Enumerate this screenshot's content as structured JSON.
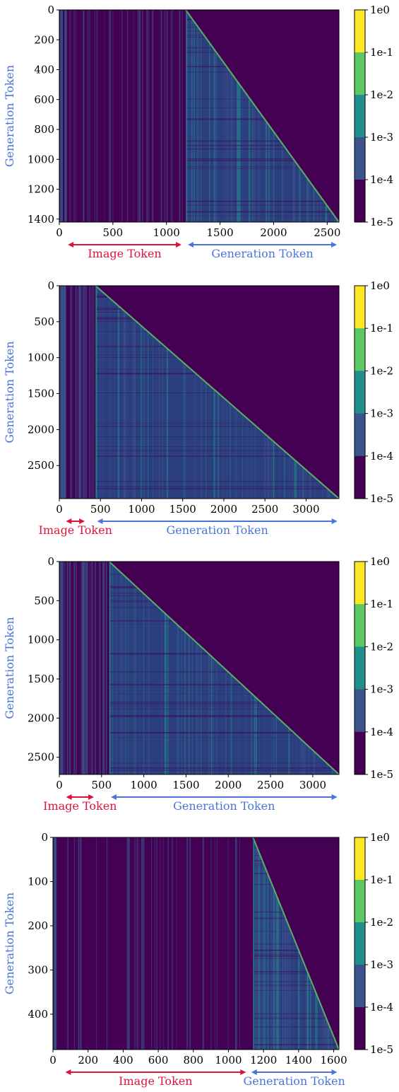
{
  "colors": {
    "image_token": "#dc143c",
    "generation_token": "#4a74d9",
    "background_cell": "#440154",
    "colorbar": [
      "#440154",
      "#3b528b",
      "#21908d",
      "#5dc863",
      "#fde725"
    ]
  },
  "chart_data": [
    {
      "type": "heatmap",
      "ylabel": "Generation Token",
      "x_ticks": [
        0,
        500,
        1000,
        1500,
        2000,
        2500
      ],
      "y_ticks": [
        0,
        200,
        400,
        600,
        800,
        1000,
        1200,
        1400
      ],
      "xlim": [
        0,
        2610
      ],
      "ylim": [
        1420,
        0
      ],
      "image_token_end": 1180,
      "spans": [
        {
          "label": "Image Token",
          "start": 80,
          "end": 1140,
          "color": "#dc143c"
        },
        {
          "label": "Generation Token",
          "start": 1200,
          "end": 2590,
          "color": "#4a74d9"
        }
      ],
      "colorbar": {
        "scale": "log",
        "ticks": [
          "1e0",
          "1e-1",
          "1e-2",
          "1e-3",
          "1e-4",
          "1e-5"
        ]
      }
    },
    {
      "type": "heatmap",
      "ylabel": "Generation Token",
      "x_ticks": [
        0,
        500,
        1000,
        1500,
        2000,
        2500,
        3000
      ],
      "y_ticks": [
        0,
        500,
        1000,
        1500,
        2000,
        2500
      ],
      "xlim": [
        0,
        3400
      ],
      "ylim": [
        2960,
        0
      ],
      "image_token_end": 440,
      "spans": [
        {
          "label": "Image Token",
          "start": 80,
          "end": 310,
          "color": "#dc143c"
        },
        {
          "label": "Generation Token",
          "start": 460,
          "end": 3380,
          "color": "#4a74d9"
        }
      ],
      "colorbar": {
        "scale": "log",
        "ticks": [
          "1e0",
          "1e-1",
          "1e-2",
          "1e-3",
          "1e-4",
          "1e-5"
        ]
      }
    },
    {
      "type": "heatmap",
      "ylabel": "Generation Token",
      "x_ticks": [
        0,
        500,
        1000,
        1500,
        2000,
        2500,
        3000
      ],
      "y_ticks": [
        0,
        500,
        1000,
        1500,
        2000,
        2500
      ],
      "xlim": [
        0,
        3310
      ],
      "ylim": [
        2720,
        0
      ],
      "image_token_end": 590,
      "spans": [
        {
          "label": "Image Token",
          "start": 80,
          "end": 410,
          "color": "#dc143c"
        },
        {
          "label": "Generation Token",
          "start": 610,
          "end": 3290,
          "color": "#4a74d9"
        }
      ],
      "colorbar": {
        "scale": "log",
        "ticks": [
          "1e0",
          "1e-1",
          "1e-2",
          "1e-3",
          "1e-4",
          "1e-5"
        ]
      }
    },
    {
      "type": "heatmap",
      "ylabel": "Generation Token",
      "x_ticks": [
        0,
        200,
        400,
        600,
        800,
        1000,
        1200,
        1400,
        1600
      ],
      "y_ticks": [
        0,
        100,
        200,
        300,
        400
      ],
      "xlim": [
        0,
        1630
      ],
      "ylim": [
        480,
        0
      ],
      "image_token_end": 1140,
      "spans": [
        {
          "label": "Image Token",
          "start": 70,
          "end": 1100,
          "color": "#dc143c"
        },
        {
          "label": "Generation Token",
          "start": 1130,
          "end": 1620,
          "color": "#4a74d9"
        }
      ],
      "colorbar": {
        "scale": "log",
        "ticks": [
          "1e0",
          "1e-1",
          "1e-2",
          "1e-3",
          "1e-4",
          "1e-5"
        ]
      }
    }
  ]
}
